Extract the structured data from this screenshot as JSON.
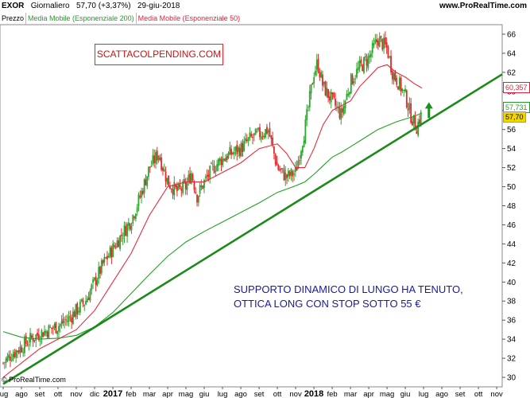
{
  "header": {
    "ticker": "EXOR",
    "period": "Giornaliero",
    "last": "57,70 (+3,37%)",
    "date": "29-giu-2018",
    "source": "www.ProRealTime.com"
  },
  "legend": {
    "price": "Prezzo",
    "ema200": "Media Mobile (Esponenziale 200)",
    "ema50": "Media Mobile (Esponenziale 50)"
  },
  "badges": {
    "ema50": "60,357",
    "ema200": "57,731",
    "price": "57,70"
  },
  "copyright": "© ProRealTime.com",
  "note_box": "SCATTACOLPENDING.COM",
  "annotation": {
    "line1": "SUPPORTO DINAMICO DI LUNGO HA TENUTO,",
    "line2": "OTTICA LONG CON STOP SOTTO 55 €"
  },
  "colors": {
    "candle_up": "#2ea52e",
    "candle_down": "#e02a2a",
    "ema200": "#22a022",
    "ema50": "#e82a3a",
    "trendline": "#1b8a1b",
    "arrow": "#1f8f1f"
  },
  "chart_data": {
    "type": "line",
    "title": "EXOR Giornaliero",
    "ylim": [
      29,
      67
    ],
    "y_ticks": [
      "30",
      "32",
      "34",
      "36",
      "38",
      "40",
      "42",
      "44",
      "46",
      "48",
      "50",
      "52",
      "54",
      "56",
      "58",
      "60",
      "62",
      "64",
      "66"
    ],
    "x_ticks": [
      "lug",
      "ago",
      "set",
      "ott",
      "nov",
      "dic",
      "2017",
      "feb",
      "mar",
      "apr",
      "mag",
      "giu",
      "lug",
      "ago",
      "set",
      "ott",
      "nov",
      "2018",
      "feb",
      "mar",
      "apr",
      "mag",
      "giu",
      "lug",
      "ago",
      "set",
      "ott",
      "nov"
    ],
    "x_bold": [
      "2017",
      "2018"
    ],
    "x_range": [
      0,
      27.3
    ],
    "series": [
      {
        "name": "Prezzo",
        "x": [
          0.0,
          0.5,
          1.0,
          1.5,
          2.0,
          2.5,
          3.0,
          3.5,
          4.0,
          4.5,
          5.0,
          5.5,
          6.0,
          6.5,
          7.0,
          7.5,
          8.0,
          8.5,
          9.0,
          9.5,
          10.0,
          10.3,
          10.6,
          11.0,
          11.5,
          12.0,
          12.5,
          13.0,
          13.5,
          14.0,
          14.5,
          15.0,
          15.5,
          16.0,
          16.5,
          17.0,
          17.2,
          17.5,
          18.0,
          18.5,
          19.0,
          19.5,
          20.0,
          20.5,
          21.0,
          21.3,
          21.6,
          22.0,
          22.3,
          22.6,
          22.9
        ],
        "values": [
          31.5,
          32.5,
          33.2,
          34.0,
          34.6,
          35.0,
          35.4,
          36.0,
          37.0,
          38.0,
          40.0,
          42.0,
          43.5,
          45.0,
          46.5,
          49.0,
          52.0,
          53.5,
          50.5,
          49.5,
          50.0,
          51.5,
          49.0,
          50.5,
          52.0,
          53.0,
          53.5,
          54.0,
          55.0,
          55.5,
          56.0,
          52.0,
          51.0,
          51.5,
          56.0,
          62.0,
          63.0,
          60.5,
          59.0,
          57.5,
          61.0,
          62.5,
          63.5,
          65.5,
          64.5,
          62.0,
          61.0,
          59.5,
          57.5,
          56.2,
          57.7
        ]
      },
      {
        "name": "Media Mobile (Esponenziale 50)",
        "x": [
          0.0,
          1.0,
          2.0,
          3.0,
          4.0,
          5.0,
          6.0,
          7.0,
          8.0,
          9.0,
          10.0,
          11.0,
          12.0,
          13.0,
          14.0,
          15.0,
          15.5,
          16.0,
          16.5,
          17.0,
          17.5,
          18.0,
          18.5,
          19.0,
          19.5,
          20.0,
          20.5,
          21.0,
          21.5,
          22.0,
          22.5,
          22.9
        ],
        "values": [
          30.0,
          31.5,
          33.0,
          34.0,
          35.0,
          37.0,
          40.0,
          43.0,
          47.0,
          50.0,
          50.5,
          50.5,
          51.5,
          52.5,
          54.0,
          54.5,
          53.5,
          52.0,
          52.0,
          54.0,
          56.5,
          58.0,
          58.5,
          59.0,
          60.5,
          61.5,
          62.5,
          62.8,
          62.0,
          61.5,
          60.8,
          60.357
        ]
      },
      {
        "name": "Media Mobile (Esponenziale 200)",
        "x": [
          0.0,
          1.0,
          2.0,
          3.0,
          4.0,
          5.0,
          6.0,
          7.0,
          8.0,
          9.0,
          10.0,
          11.0,
          12.0,
          13.0,
          14.0,
          15.0,
          16.0,
          16.5,
          17.0,
          17.5,
          18.0,
          18.5,
          19.0,
          19.5,
          20.0,
          20.5,
          21.0,
          21.5,
          22.0,
          22.5,
          22.9
        ],
        "values": [
          34.8,
          34.2,
          34.0,
          34.1,
          34.4,
          35.3,
          36.8,
          38.8,
          40.8,
          42.7,
          44.2,
          45.3,
          46.3,
          47.3,
          48.3,
          49.4,
          50.1,
          50.5,
          51.3,
          52.2,
          53.1,
          53.6,
          54.2,
          54.8,
          55.4,
          56.0,
          56.4,
          56.8,
          57.1,
          57.4,
          57.731
        ]
      },
      {
        "name": "Supporto dinamico",
        "x": [
          0.0,
          27.3
        ],
        "values": [
          29.3,
          61.8
        ]
      }
    ]
  }
}
